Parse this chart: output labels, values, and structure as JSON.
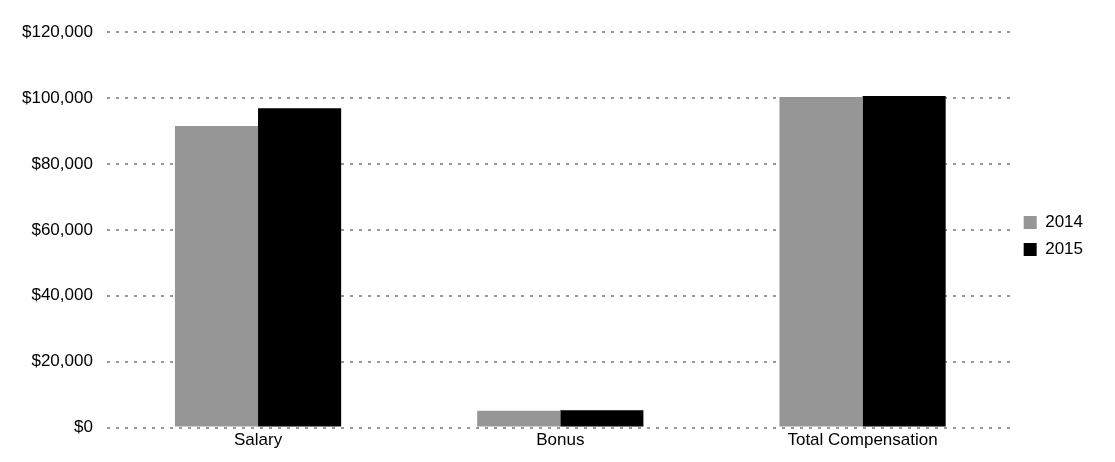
{
  "chart_data": {
    "type": "bar",
    "categories": [
      "Salary",
      "Bonus",
      "Total Compensation"
    ],
    "series": [
      {
        "name": "2014",
        "color": "#969696",
        "values": [
          91500,
          5100,
          100300
        ]
      },
      {
        "name": "2015",
        "color": "#000000",
        "values": [
          96900,
          5300,
          100600
        ]
      }
    ],
    "ylim": [
      0,
      120000
    ],
    "yticks": [
      {
        "value": 0,
        "label": "$0"
      },
      {
        "value": 20000,
        "label": "$20,000"
      },
      {
        "value": 40000,
        "label": "$40,000"
      },
      {
        "value": 60000,
        "label": "$60,000"
      },
      {
        "value": 80000,
        "label": "$80,000"
      },
      {
        "value": 100000,
        "label": "$100,000"
      },
      {
        "value": 120000,
        "label": "$120,000"
      }
    ],
    "grid": "y",
    "legend": "right"
  }
}
